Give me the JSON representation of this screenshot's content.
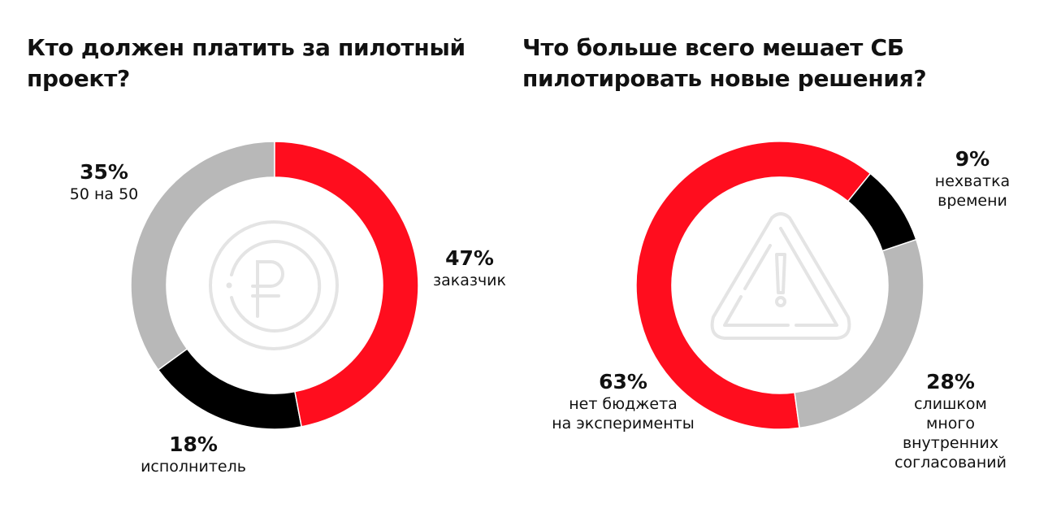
{
  "chart_data": [
    {
      "type": "pie",
      "variant": "donut",
      "title": "Кто должен платить за пилотный\nпроект?",
      "center_icon": "ruble-coin-icon",
      "start_angle_deg": 0,
      "slices": [
        {
          "label": "заказчик",
          "value": 47,
          "display": "47%",
          "color": "#ff0d1e"
        },
        {
          "label": "исполнитель",
          "value": 18,
          "display": "18%",
          "color": "#000000"
        },
        {
          "label": "50 на 50",
          "value": 35,
          "display": "35%",
          "color": "#b8b8b8"
        }
      ]
    },
    {
      "type": "pie",
      "variant": "donut",
      "title": "Что больше всего мешает СБ\nпилотировать новые решения?",
      "center_icon": "warning-triangle-icon",
      "start_angle_deg": 39,
      "slices": [
        {
          "label": "нехватка\nвремени",
          "value": 9,
          "display": "9%",
          "color": "#000000"
        },
        {
          "label": "слишком много\nвнутренних\nсогласований",
          "value": 28,
          "display": "28%",
          "color": "#b8b8b8"
        },
        {
          "label": "нет бюджета\nна эксперименты",
          "value": 63,
          "display": "63%",
          "color": "#ff0d1e"
        }
      ]
    }
  ]
}
